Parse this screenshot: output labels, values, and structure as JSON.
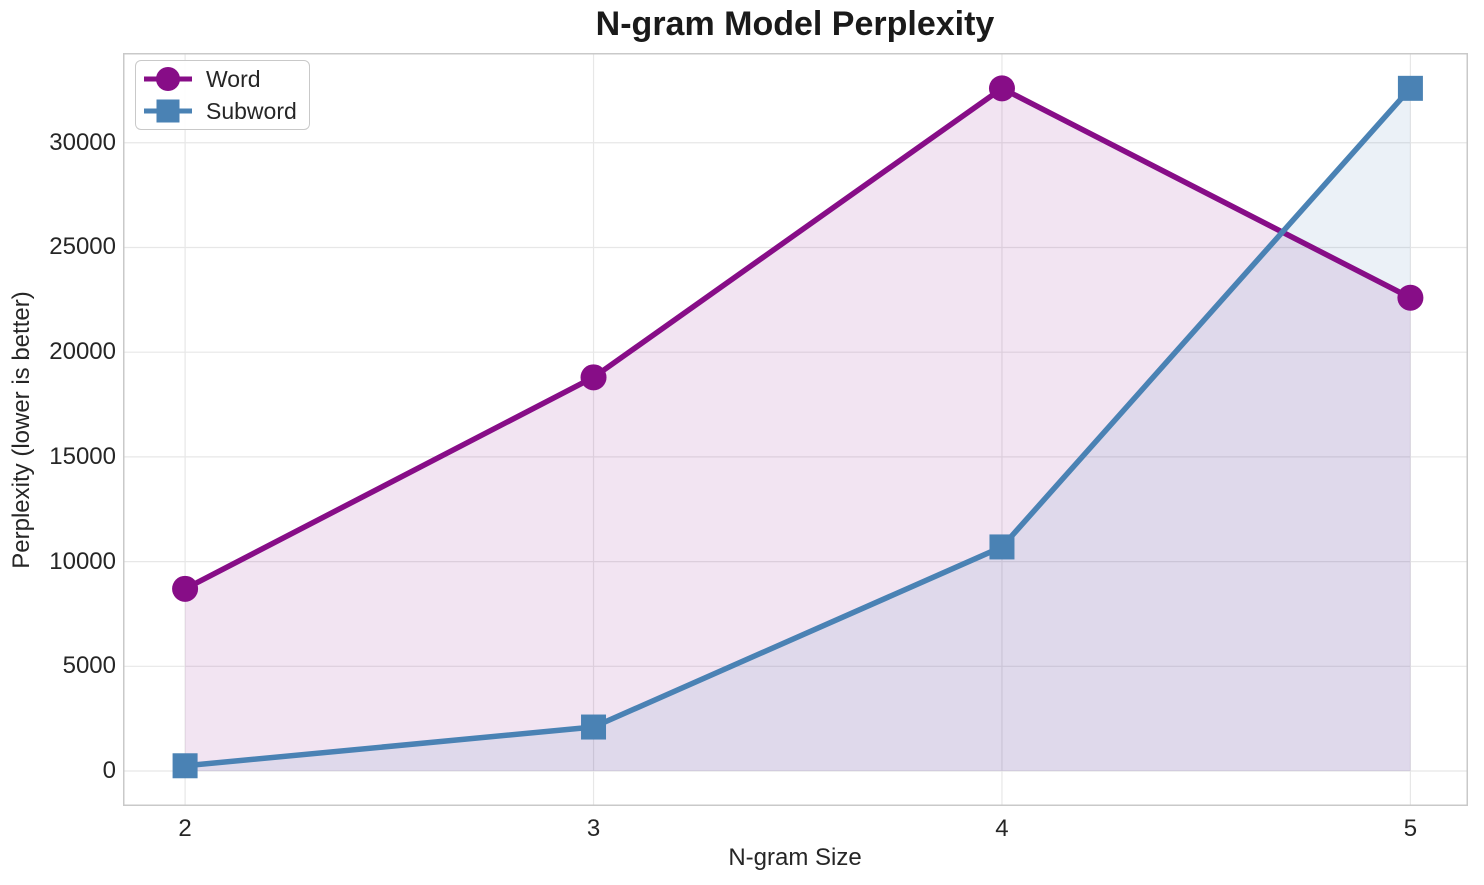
{
  "chart_data": {
    "type": "line",
    "title": "N-gram Model Perplexity",
    "xlabel": "N-gram Size",
    "ylabel": "Perplexity (lower is better)",
    "x": [
      2,
      3,
      4,
      5
    ],
    "xtick_labels": [
      "2",
      "3",
      "4",
      "5"
    ],
    "ytick_values": [
      0,
      5000,
      10000,
      15000,
      20000,
      25000,
      30000
    ],
    "ytick_labels": [
      "0",
      "5000",
      "10000",
      "15000",
      "20000",
      "25000",
      "30000"
    ],
    "xlim": [
      1.848,
      5.141
    ],
    "ylim": [
      -1671,
      34287
    ],
    "grid": true,
    "legend_position": "upper-left",
    "area_fill_baseline": 0,
    "series": [
      {
        "name": "Word",
        "marker": "circle",
        "color": "#870D87",
        "fill_alpha": 0.11,
        "line_width": 5.5,
        "values": [
          8700,
          18800,
          32600,
          22600
        ]
      },
      {
        "name": "Subword",
        "marker": "square",
        "color": "#4A82B4",
        "fill_alpha": 0.11,
        "line_width": 5.5,
        "values": [
          250,
          2100,
          10700,
          32600
        ]
      }
    ],
    "colors": {
      "grid": "#E7E7E7",
      "spine": "#C9C9C9",
      "text": "#262626",
      "title": "#1A1A1A",
      "background": "#FFFFFF"
    }
  }
}
